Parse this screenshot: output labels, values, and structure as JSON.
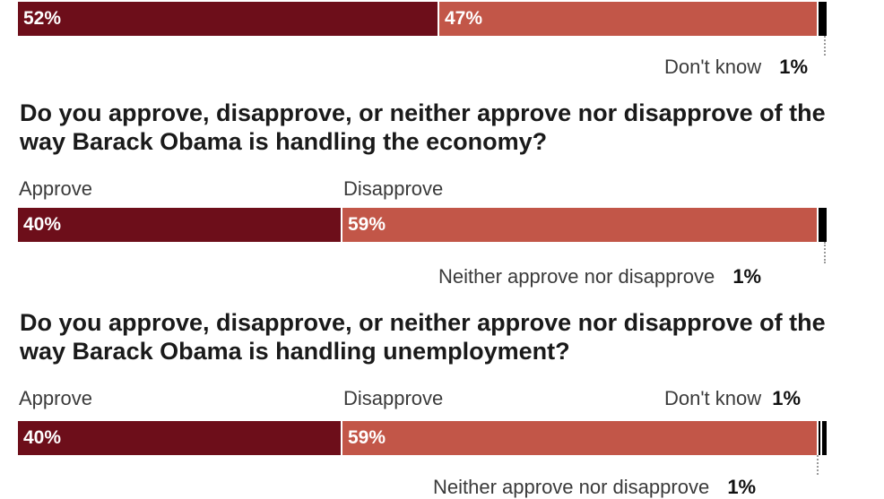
{
  "colors": {
    "approve": "#6d0e1a",
    "disapprove": "#c25648",
    "tick": "#000000"
  },
  "chart_data": [
    {
      "type": "bar",
      "orientation": "horizontal-stacked",
      "segments": [
        {
          "name": "",
          "value": 52
        },
        {
          "name": "",
          "value": 47
        }
      ],
      "remainder": {
        "label": "Don't know",
        "value": 1
      }
    },
    {
      "type": "bar",
      "orientation": "horizontal-stacked",
      "question": "Do you approve, disapprove, or neither approve nor disapprove of the way Barack Obama is handling the economy?",
      "segments": [
        {
          "name": "Approve",
          "value": 40
        },
        {
          "name": "Disapprove",
          "value": 59
        }
      ],
      "remainder": {
        "label": "Neither approve nor disapprove",
        "value": 1
      }
    },
    {
      "type": "bar",
      "orientation": "horizontal-stacked",
      "question": "Do you approve, disapprove, or neither approve nor disapprove of the way Barack Obama is handling unemployment?",
      "segments": [
        {
          "name": "Approve",
          "value": 40
        },
        {
          "name": "Disapprove",
          "value": 59
        }
      ],
      "remainder": {
        "label": "Don't know",
        "value": 1
      },
      "remainder2": {
        "label": "Neither approve nor disapprove",
        "value": 1
      }
    }
  ],
  "text": {
    "c1_a_pct": "52%",
    "c1_d_pct": "47%",
    "c1_note_label": "Don't know",
    "c1_note_pct": "1%",
    "c2_question": "Do you approve, disapprove, or neither approve nor disapprove of the way Barack Obama is handling the economy?",
    "c2_approve": "Approve",
    "c2_disapprove": "Disapprove",
    "c2_a_pct": "40%",
    "c2_d_pct": "59%",
    "c2_note_label": "Neither approve nor disapprove",
    "c2_note_pct": "1%",
    "c3_question": "Do you approve, disapprove, or neither approve nor disapprove of the way Barack Obama is handling unemployment?",
    "c3_approve": "Approve",
    "c3_disapprove": "Disapprove",
    "c3_dk_label": "Don't know",
    "c3_dk_pct": "1%",
    "c3_a_pct": "40%",
    "c3_d_pct": "59%",
    "c3_note_label": "Neither approve nor disapprove",
    "c3_note_pct": "1%"
  }
}
